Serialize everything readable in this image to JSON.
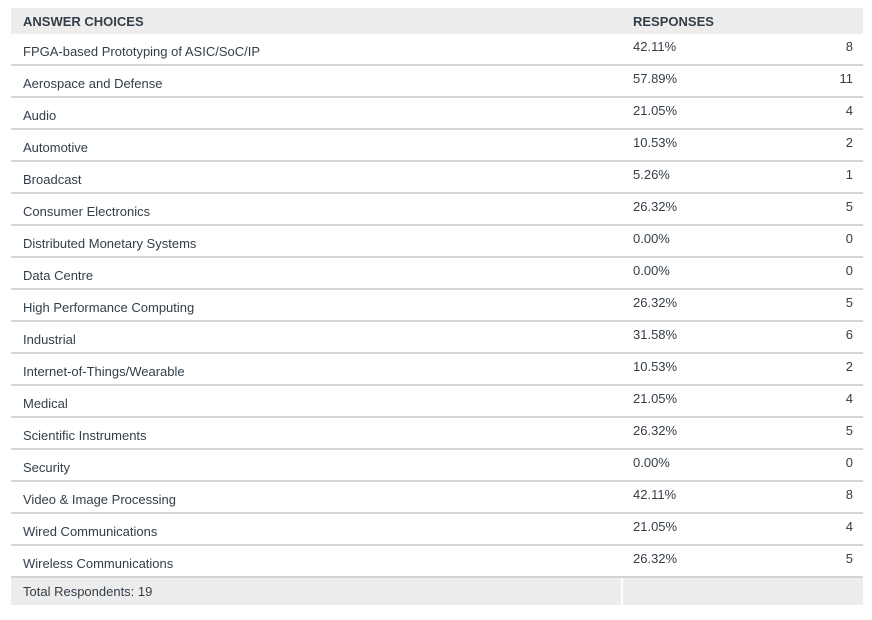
{
  "table": {
    "headers": {
      "choices": "ANSWER CHOICES",
      "responses": "RESPONSES"
    },
    "rows": [
      {
        "choice": "FPGA-based Prototyping of ASIC/SoC/IP",
        "percent": "42.11%",
        "count": "8"
      },
      {
        "choice": "Aerospace and Defense",
        "percent": "57.89%",
        "count": "11"
      },
      {
        "choice": "Audio",
        "percent": "21.05%",
        "count": "4"
      },
      {
        "choice": "Automotive",
        "percent": "10.53%",
        "count": "2"
      },
      {
        "choice": "Broadcast",
        "percent": "5.26%",
        "count": "1"
      },
      {
        "choice": "Consumer Electronics",
        "percent": "26.32%",
        "count": "5"
      },
      {
        "choice": "Distributed Monetary Systems",
        "percent": "0.00%",
        "count": "0"
      },
      {
        "choice": "Data Centre",
        "percent": "0.00%",
        "count": "0"
      },
      {
        "choice": "High Performance Computing",
        "percent": "26.32%",
        "count": "5"
      },
      {
        "choice": "Industrial",
        "percent": "31.58%",
        "count": "6"
      },
      {
        "choice": "Internet-of-Things/Wearable",
        "percent": "10.53%",
        "count": "2"
      },
      {
        "choice": "Medical",
        "percent": "21.05%",
        "count": "4"
      },
      {
        "choice": "Scientific Instruments",
        "percent": "26.32%",
        "count": "5"
      },
      {
        "choice": "Security",
        "percent": "0.00%",
        "count": "0"
      },
      {
        "choice": "Video & Image Processing",
        "percent": "42.11%",
        "count": "8"
      },
      {
        "choice": "Wired Communications",
        "percent": "21.05%",
        "count": "4"
      },
      {
        "choice": "Wireless Communications",
        "percent": "26.32%",
        "count": "5"
      }
    ],
    "footer": "Total Respondents: 19"
  },
  "chart_data": {
    "type": "table",
    "title": "",
    "columns": [
      "ANSWER CHOICES",
      "RESPONSES (%)",
      "RESPONSES (count)"
    ],
    "categories": [
      "FPGA-based Prototyping of ASIC/SoC/IP",
      "Aerospace and Defense",
      "Audio",
      "Automotive",
      "Broadcast",
      "Consumer Electronics",
      "Distributed Monetary Systems",
      "Data Centre",
      "High Performance Computing",
      "Industrial",
      "Internet-of-Things/Wearable",
      "Medical",
      "Scientific Instruments",
      "Security",
      "Video & Image Processing",
      "Wired Communications",
      "Wireless Communications"
    ],
    "series": [
      {
        "name": "Percent",
        "values": [
          42.11,
          57.89,
          21.05,
          10.53,
          5.26,
          26.32,
          0.0,
          0.0,
          26.32,
          31.58,
          10.53,
          21.05,
          26.32,
          0.0,
          42.11,
          21.05,
          26.32
        ]
      },
      {
        "name": "Count",
        "values": [
          8,
          11,
          4,
          2,
          1,
          5,
          0,
          0,
          5,
          6,
          2,
          4,
          5,
          0,
          8,
          4,
          5
        ]
      }
    ],
    "total_respondents": 19
  }
}
